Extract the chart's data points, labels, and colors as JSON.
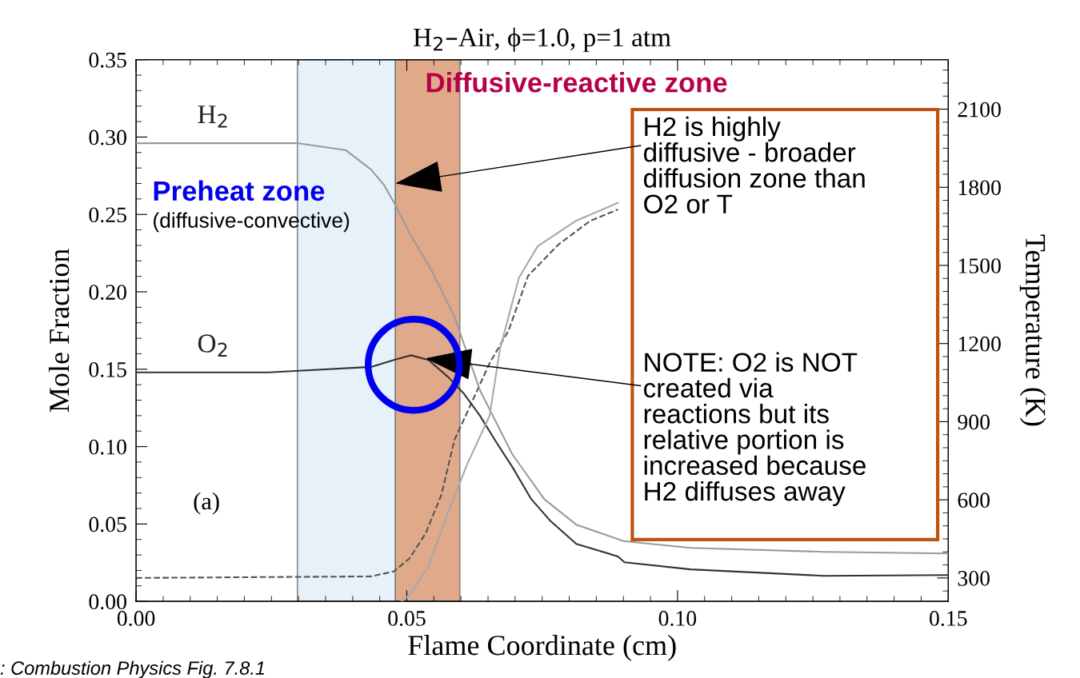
{
  "chart_data": {
    "type": "line",
    "title": "H$_{2}$–Air, ϕ=1.0, p=1 atm",
    "xlabel": "Flame Coordinate (cm)",
    "ylabel": "Mole Fraction",
    "y2label": "Temperature (K)",
    "xlim": [
      0,
      0.15
    ],
    "xticks": [
      {
        "value": 0,
        "label": "0.00"
      },
      0.05,
      {
        "value": 0.1,
        "label": "0.10"
      },
      0.15
    ],
    "ylim": [
      0,
      0.35
    ],
    "yticks": [
      {
        "value": 0,
        "label": "0.00"
      },
      0.05,
      {
        "value": 0.1,
        "label": "0.10"
      },
      0.15,
      {
        "value": 0.2,
        "label": "0.20"
      },
      0.25,
      {
        "value": 0.3,
        "label": "0.30"
      },
      0.35
    ],
    "y2lim": [
      210,
      2290
    ],
    "y2ticks": [
      300,
      600,
      900,
      1200,
      1500,
      1800,
      2100
    ],
    "grid": false,
    "legend": false,
    "line_style": "solid",
    "series": [
      {
        "name": "H$_{2}$",
        "color": "#9a9a9a",
        "x": [
          0,
          0.03,
          0.0387,
          0.0434,
          0.0458,
          0.0479,
          0.0505,
          0.0547,
          0.0588,
          0.0635,
          0.0695,
          0.0754,
          0.0813,
          0.09,
          0.1024,
          0.127,
          0.15
        ],
        "values": [
          0.296,
          0.296,
          0.2916,
          0.279,
          0.269,
          0.256,
          0.238,
          0.213,
          0.184,
          0.1365,
          0.095,
          0.066,
          0.0496,
          0.039,
          0.0346,
          0.032,
          0.031
        ]
      },
      {
        "name": "O$_{2}$",
        "color": "#333333",
        "x": [
          0,
          0.0245,
          0.03,
          0.0434,
          0.0476,
          0.0508,
          0.054,
          0.0577,
          0.0606,
          0.0635,
          0.0665,
          0.0695,
          0.073,
          0.0766,
          0.0813,
          0.089,
          0.0902,
          0.1024,
          0.127,
          0.15
        ],
        "values": [
          0.148,
          0.148,
          0.149,
          0.1515,
          0.156,
          0.159,
          0.156,
          0.1448,
          0.134,
          0.12,
          0.103,
          0.0868,
          0.066,
          0.0517,
          0.0372,
          0.029,
          0.0253,
          0.0207,
          0.0165,
          0.017
        ]
      },
      {
        "color": "#a8a8a8",
        "x": [
          0.049,
          0.0505,
          0.054,
          0.0577,
          0.0612,
          0.0653,
          0.0672,
          0.0707,
          0.0742,
          0.0813,
          0.089
        ],
        "values": [
          0,
          0.004,
          0.0227,
          0.058,
          0.089,
          0.12,
          0.163,
          0.209,
          0.2295,
          0.246,
          0.2575
        ]
      },
      {
        "color": "#555555",
        "axis": "y2",
        "line_style": "dashed",
        "x": [
          0,
          0.0434,
          0.0476,
          0.0505,
          0.0535,
          0.0564,
          0.0588,
          0.0618,
          0.0653,
          0.0688,
          0.0724,
          0.078,
          0.0838,
          0.089
        ],
        "values": [
          300,
          306,
          325,
          375,
          472,
          620,
          830,
          965,
          1125,
          1250,
          1460,
          1580,
          1670,
          1715
        ]
      }
    ],
    "bands": [
      {
        "axis": "x",
        "from": 0.0298,
        "to": 0.0479,
        "label": "Preheat zone",
        "color": "#e6f1f9"
      },
      {
        "axis": "x",
        "from": 0.0479,
        "to": 0.0598,
        "label": "Diffusive-reactive zone",
        "color": "#dfa98a"
      }
    ],
    "annotations": [
      "(diffusive-convective)",
      "(a)",
      ": Combustion Physics Fig. 7.8.1",
      {
        "text": "H2 is highly\ndiffusive - broader\ndiffusion zone than\nO2 or T",
        "x": 0.0479,
        "y": 0.27
      },
      {
        "text": "NOTE: O2 is NOT\ncreated via\nreactions but its\nrelative portion is\nincreased because\nH2 diffuses away",
        "x": 0.0535,
        "y": 0.157
      }
    ]
  }
}
